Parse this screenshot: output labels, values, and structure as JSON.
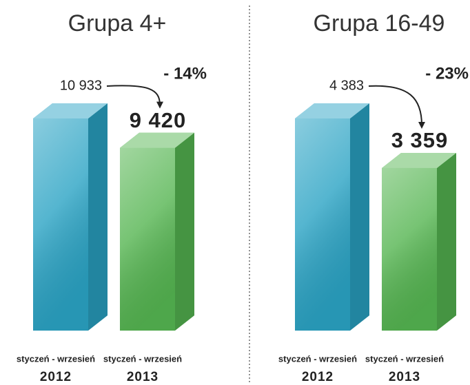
{
  "chart_data": [
    {
      "type": "bar",
      "title": "Grupa 4+",
      "categories": [
        [
          "styczeń - wrzesień",
          "2012"
        ],
        [
          "styczeń - wrzesień",
          "2013"
        ]
      ],
      "values": [
        10933,
        9420
      ],
      "value_labels": [
        "10 933",
        "9 420"
      ],
      "colors": [
        "#2aa3c4",
        "#55b551"
      ],
      "annotation": "- 14%"
    },
    {
      "type": "bar",
      "title": "Grupa 16-49",
      "categories": [
        [
          "styczeń - wrzesień",
          "2012"
        ],
        [
          "styczeń - wrzesień",
          "2013"
        ]
      ],
      "values": [
        4383,
        3359
      ],
      "value_labels": [
        "4 383",
        "3 359"
      ],
      "colors": [
        "#2aa3c4",
        "#55b551"
      ],
      "annotation": "- 23%"
    }
  ]
}
